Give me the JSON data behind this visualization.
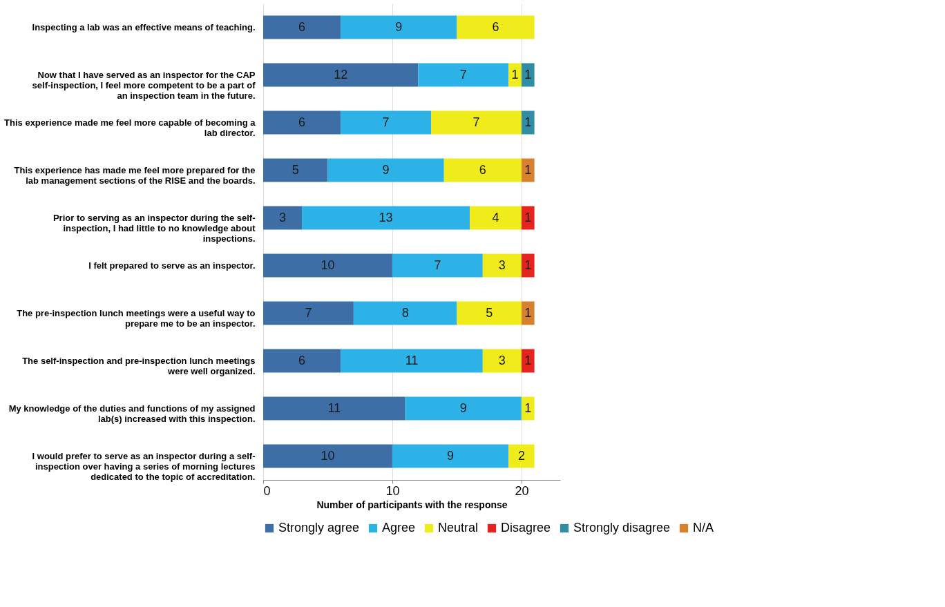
{
  "chart_data": {
    "type": "bar",
    "orientation": "horizontal",
    "stacked": true,
    "xlabel": "Number of participants with the response",
    "categories": [
      "Inspecting a lab was an effective means of teaching.",
      "Now that I have served as an inspector for the CAP self-inspection, I feel more competent to be a part of an inspection team in the future.",
      "This experience made me feel more capable of becoming a lab director.",
      "This experience has made me feel more prepared for the lab management sections of the RISE and the boards.",
      "Prior to serving as an inspector during the self-inspection, I had little to no knowledge about inspections.",
      "I felt prepared to serve as an inspector.",
      "The pre-inspection lunch meetings were a useful way to prepare me to be an inspector.",
      "The self-inspection and pre-inspection lunch meetings were well organized.",
      "My knowledge of the duties and functions of my assigned lab(s) increased with this inspection.",
      "I would prefer to serve as an inspector during a self-inspection over having a series of morning lectures dedicated to the topic of accreditation."
    ],
    "series": [
      {
        "name": "Strongly agree",
        "color": "#3e6ea6",
        "values": [
          6,
          12,
          6,
          5,
          3,
          10,
          7,
          6,
          11,
          10
        ]
      },
      {
        "name": "Agree",
        "color": "#2cb2e6",
        "values": [
          9,
          7,
          7,
          9,
          13,
          7,
          8,
          11,
          9,
          9
        ]
      },
      {
        "name": "Neutral",
        "color": "#f0ec1c",
        "values": [
          6,
          1,
          7,
          6,
          4,
          3,
          5,
          3,
          1,
          2
        ]
      },
      {
        "name": "Disagree",
        "color": "#e52420",
        "values": [
          null,
          null,
          null,
          null,
          1,
          1,
          null,
          1,
          null,
          null
        ]
      },
      {
        "name": "Strongly disagree",
        "color": "#2f8ea6",
        "values": [
          null,
          1,
          1,
          null,
          null,
          null,
          null,
          null,
          null,
          null
        ]
      },
      {
        "name": "N/A",
        "color": "#d7802e",
        "values": [
          null,
          null,
          null,
          1,
          null,
          null,
          1,
          null,
          null,
          null
        ]
      }
    ],
    "xlim": [
      0,
      23
    ],
    "xticks": [
      0,
      10,
      20
    ],
    "grid": "x",
    "legend": "bottom",
    "data_labels": true
  }
}
